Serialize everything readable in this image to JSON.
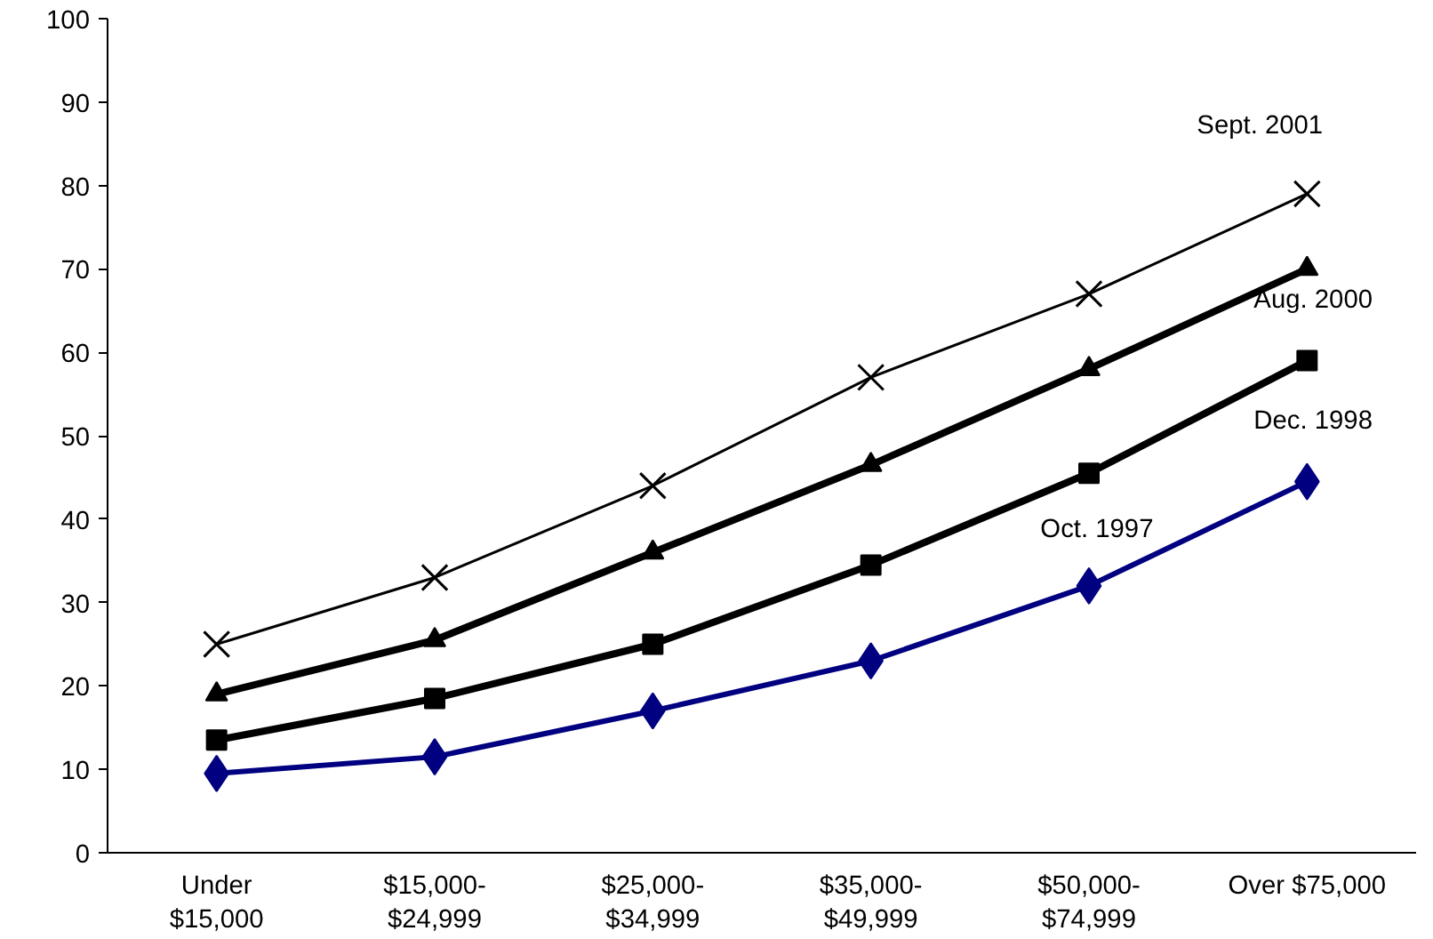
{
  "chart_data": {
    "type": "line",
    "categories": [
      "Under\n$15,000",
      "$15,000-\n$24,999",
      "$25,000-\n$34,999",
      "$35,000-\n$49,999",
      "$50,000-\n$74,999",
      "Over $75,000"
    ],
    "series": [
      {
        "name": "Sept. 2001",
        "color": "#000000",
        "marker": "cross",
        "values": [
          25,
          33,
          44,
          57,
          67,
          79
        ]
      },
      {
        "name": "Aug. 2000",
        "color": "#000000",
        "marker": "triangle",
        "values": [
          19,
          25.5,
          36,
          46.5,
          58,
          70
        ]
      },
      {
        "name": "Dec. 1998",
        "color": "#000000",
        "marker": "square",
        "values": [
          13.5,
          18.5,
          25,
          34.5,
          45.5,
          59
        ]
      },
      {
        "name": "Oct. 1997",
        "color": "#000080",
        "marker": "diamond",
        "values": [
          9.5,
          11.5,
          17,
          23,
          32,
          44.5
        ]
      }
    ],
    "ylim": [
      0,
      100
    ],
    "yticks": [
      0,
      10,
      20,
      30,
      40,
      50,
      60,
      70,
      80,
      90,
      100
    ],
    "grid": false,
    "line_style": "solid"
  }
}
